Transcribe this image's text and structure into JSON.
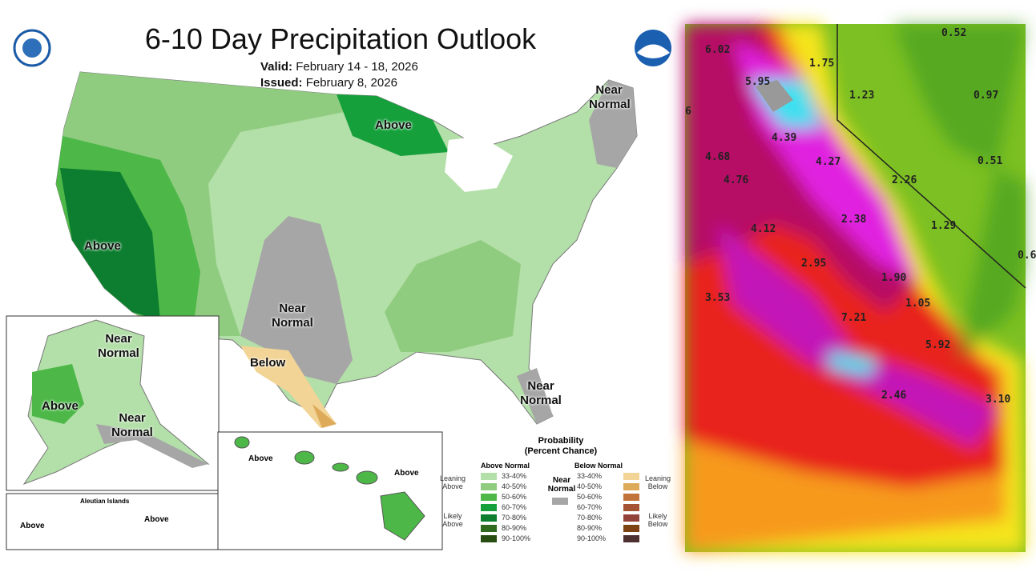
{
  "header": {
    "title": "6-10 Day Precipitation Outlook",
    "valid_label": "Valid:",
    "valid_value": "February 14 - 18, 2026",
    "issued_label": "Issued:",
    "issued_value": "February 8, 2026"
  },
  "logos": {
    "left": "Department of Commerce seal",
    "right": "NOAA"
  },
  "map_labels": {
    "northeast": "Near Normal",
    "great_lakes": "Above",
    "west": "Above",
    "southwest": "Near Normal",
    "texas": "Below",
    "florida": "Near Normal"
  },
  "alaska": {
    "north": "Near Normal",
    "west": "Above",
    "south": "Near Normal"
  },
  "aleutian": {
    "title": "Aleutian Islands",
    "left": "Above",
    "right": "Above"
  },
  "hawaii": {
    "west": "Above",
    "east": "Above"
  },
  "legend": {
    "title": "Probability",
    "subtitle": "(Percent Chance)",
    "above_header": "Above Normal",
    "below_header": "Below Normal",
    "near_label": "Near Normal",
    "near_color": "#a6a6a6",
    "leaning_above": "Leaning Above",
    "likely_above": "Likely Above",
    "leaning_below": "Leaning Below",
    "likely_below": "Likely Below",
    "above": [
      {
        "range": "33-40%",
        "color": "#b3dfa8"
      },
      {
        "range": "40-50%",
        "color": "#90cc80"
      },
      {
        "range": "50-60%",
        "color": "#4db848"
      },
      {
        "range": "60-70%",
        "color": "#16a03c"
      },
      {
        "range": "70-80%",
        "color": "#0d7e2f"
      },
      {
        "range": "80-90%",
        "color": "#2f6a1e"
      },
      {
        "range": "90-100%",
        "color": "#284d12"
      }
    ],
    "below": [
      {
        "range": "33-40%",
        "color": "#f2d496"
      },
      {
        "range": "40-50%",
        "color": "#ddaa5a"
      },
      {
        "range": "50-60%",
        "color": "#c2733a"
      },
      {
        "range": "60-70%",
        "color": "#a45434"
      },
      {
        "range": "70-80%",
        "color": "#93423a"
      },
      {
        "range": "80-90%",
        "color": "#7d4313"
      },
      {
        "range": "90-100%",
        "color": "#4d3030"
      }
    ]
  },
  "precip_values": [
    "6.02",
    "1.75",
    "5.95",
    "1.23",
    "0.97",
    "0.52",
    "6",
    "4.39",
    "4.27",
    "4.68",
    "4.76",
    "2.26",
    "0.51",
    "2.38",
    "1.29",
    "4.12",
    "0.6",
    "2.95",
    "1.90",
    "3.53",
    "1.05",
    "7.21",
    "5.92",
    "2.46",
    "3.10"
  ]
}
